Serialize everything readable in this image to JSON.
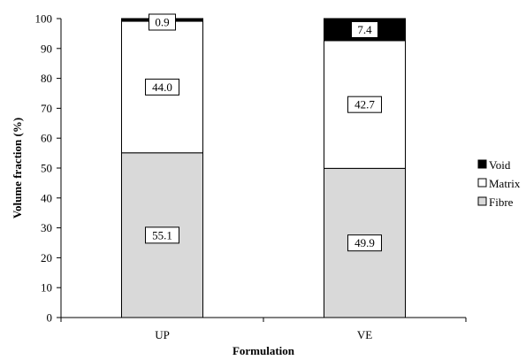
{
  "chart_data": {
    "type": "bar",
    "stacked": true,
    "categories": [
      "UP",
      "VE"
    ],
    "series": [
      {
        "name": "Fibre",
        "values": [
          55.1,
          49.9
        ],
        "color": "#d9d9d9"
      },
      {
        "name": "Matrix",
        "values": [
          44.0,
          42.7
        ],
        "color": "#ffffff"
      },
      {
        "name": "Void",
        "values": [
          0.9,
          7.4
        ],
        "color": "#000000"
      }
    ],
    "data_labels": [
      [
        "55.1",
        "49.9"
      ],
      [
        "44.0",
        "42.7"
      ],
      [
        "0.9",
        "7.4"
      ]
    ],
    "xlabel": "Formulation",
    "ylabel": "Volume fraction (%)",
    "ylim": [
      0,
      100
    ],
    "yticks": [
      0,
      10,
      20,
      30,
      40,
      50,
      60,
      70,
      80,
      90,
      100
    ],
    "legend_order": [
      "Void",
      "Matrix",
      "Fibre"
    ],
    "legend_position": "right",
    "grid": false
  }
}
